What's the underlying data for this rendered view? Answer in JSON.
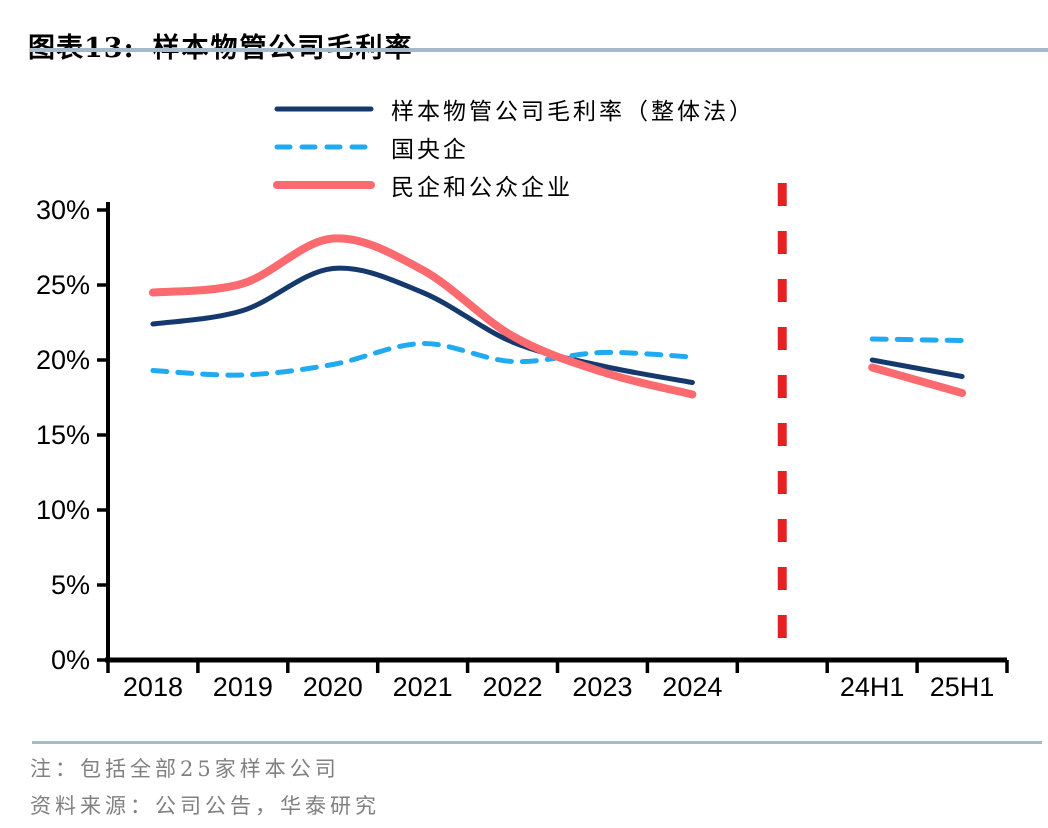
{
  "header": {
    "title_prefix": "图表13:",
    "title": "样本物管公司毛利率"
  },
  "chart_data": {
    "type": "line",
    "categories": [
      "2018",
      "2019",
      "2020",
      "2021",
      "2022",
      "2023",
      "2024",
      "",
      "24H1",
      "25H1"
    ],
    "series": [
      {
        "name": "样本物管公司毛利率（整体法）",
        "color": "#15396c",
        "style": "solid",
        "stroke_width": 5,
        "values": [
          22.4,
          23.3,
          26.1,
          24.5,
          21.2,
          19.6,
          18.5,
          null,
          20.0,
          18.9
        ]
      },
      {
        "name": "国央企",
        "color": "#22aaf0",
        "style": "dashed",
        "stroke_width": 5,
        "values": [
          19.3,
          19.0,
          19.7,
          21.1,
          19.9,
          20.5,
          20.2,
          null,
          21.4,
          21.3
        ]
      },
      {
        "name": "民企和公众企业",
        "color": "#fa6a6e",
        "style": "solid",
        "stroke_width": 8,
        "values": [
          24.5,
          25.1,
          28.1,
          26.0,
          21.6,
          19.2,
          17.7,
          null,
          19.5,
          17.8
        ]
      }
    ],
    "ylim": [
      0,
      30
    ],
    "ytick_step": 5,
    "ytick_labels": [
      "0%",
      "5%",
      "10%",
      "15%",
      "20%",
      "25%",
      "30%"
    ],
    "xlabel": "",
    "ylabel": "",
    "grid": false,
    "legend_position": "top-center",
    "divider": {
      "position_category_index": 7,
      "color": "#e32322",
      "style": "dashed",
      "note": "red dashed vertical separator between annual (2018-2024) and interim (24H1/25H1) sections"
    }
  },
  "footer": {
    "note": "注：包括全部25家样本公司",
    "source": "资料来源：公司公告，华泰研究"
  },
  "colors": {
    "rule_blue_gray": "#a6b9cb",
    "axis_black": "#000000",
    "footer_gray": "#808080"
  }
}
